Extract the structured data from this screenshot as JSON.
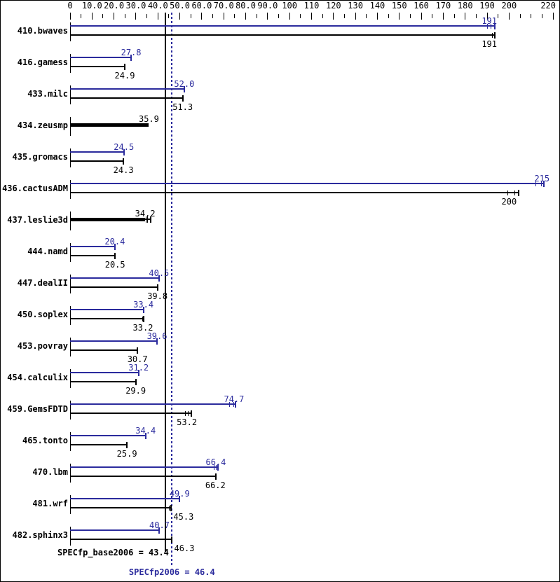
{
  "chart_data": {
    "type": "bar",
    "orientation": "horizontal",
    "title": "",
    "colors": {
      "peak_blue": "#2b2b9d",
      "base_black": "#000000",
      "background": "#ffffff"
    },
    "axis": {
      "min": 0,
      "max": 220,
      "minor_step": 5,
      "labels": [
        {
          "v": 0,
          "label": "0"
        },
        {
          "v": 10,
          "label": "10.0"
        },
        {
          "v": 20,
          "label": "20.0"
        },
        {
          "v": 30,
          "label": "30.0"
        },
        {
          "v": 40,
          "label": "40.0"
        },
        {
          "v": 50,
          "label": "50.0"
        },
        {
          "v": 60,
          "label": "60.0"
        },
        {
          "v": 70,
          "label": "70.0"
        },
        {
          "v": 80,
          "label": "80.0"
        },
        {
          "v": 90,
          "label": "90.0"
        },
        {
          "v": 100,
          "label": "100"
        },
        {
          "v": 110,
          "label": "110"
        },
        {
          "v": 120,
          "label": "120"
        },
        {
          "v": 130,
          "label": "130"
        },
        {
          "v": 140,
          "label": "140"
        },
        {
          "v": 150,
          "label": "150"
        },
        {
          "v": 160,
          "label": "160"
        },
        {
          "v": 170,
          "label": "170"
        },
        {
          "v": 180,
          "label": "180"
        },
        {
          "v": 190,
          "label": "190"
        },
        {
          "v": 200,
          "label": "200"
        },
        {
          "v": 220,
          "label": "220"
        }
      ]
    },
    "benchmarks": [
      {
        "name": "410.bwaves",
        "peak": {
          "value": 191,
          "label": "191",
          "end": 193.5,
          "ticks": [
            190,
            191.5
          ]
        },
        "base": {
          "value": 191,
          "label": "191",
          "end": 193.5,
          "ticks": [
            192.2
          ]
        }
      },
      {
        "name": "416.gamess",
        "peak": {
          "value": 27.8,
          "label": "27.8"
        },
        "base": {
          "value": 24.9,
          "label": "24.9"
        }
      },
      {
        "name": "433.milc",
        "peak": {
          "value": 52.0,
          "label": "52.0"
        },
        "base": {
          "value": 51.3,
          "label": "51.3"
        }
      },
      {
        "name": "434.zeusmp",
        "single": {
          "value": 35.9,
          "label": "35.9"
        }
      },
      {
        "name": "435.gromacs",
        "peak": {
          "value": 24.5,
          "label": "24.5"
        },
        "base": {
          "value": 24.3,
          "label": "24.3"
        }
      },
      {
        "name": "436.cactusADM",
        "peak": {
          "value": 215,
          "label": "215",
          "end": 215.7,
          "ticks": [
            212,
            214.6
          ]
        },
        "base": {
          "value": 200,
          "label": "200",
          "end": 204.3,
          "ticks": [
            199.2,
            202.5
          ]
        }
      },
      {
        "name": "437.leslie3d",
        "single": {
          "value": 34.2,
          "label": "34.2",
          "end": 36.8,
          "ticks": [
            34.5,
            35.2
          ]
        }
      },
      {
        "name": "444.namd",
        "peak": {
          "value": 20.4,
          "label": "20.4"
        },
        "base": {
          "value": 20.5,
          "label": "20.5"
        }
      },
      {
        "name": "447.dealII",
        "peak": {
          "value": 40.5,
          "label": "40.5"
        },
        "base": {
          "value": 39.8,
          "label": "39.8",
          "end": 40.0,
          "ticks": [
            39.5
          ]
        }
      },
      {
        "name": "450.soplex",
        "peak": {
          "value": 33.4,
          "label": "33.4"
        },
        "base": {
          "value": 33.2,
          "label": "33.2",
          "end": 33.4,
          "ticks": [
            32.8
          ]
        }
      },
      {
        "name": "453.povray",
        "peak": {
          "value": 39.6,
          "label": "39.6"
        },
        "base": {
          "value": 30.7,
          "label": "30.7"
        }
      },
      {
        "name": "454.calculix",
        "peak": {
          "value": 31.2,
          "label": "31.2"
        },
        "base": {
          "value": 29.9,
          "label": "29.9"
        }
      },
      {
        "name": "459.GemsFDTD",
        "peak": {
          "value": 74.7,
          "label": "74.7",
          "end": 75.4,
          "ticks": [
            72.6,
            74.5
          ]
        },
        "base": {
          "value": 53.2,
          "label": "53.2",
          "end": 55.2,
          "ticks": [
            52.3,
            53.6
          ]
        }
      },
      {
        "name": "465.tonto",
        "peak": {
          "value": 34.4,
          "label": "34.4"
        },
        "base": {
          "value": 25.9,
          "label": "25.9"
        }
      },
      {
        "name": "470.lbm",
        "peak": {
          "value": 66.4,
          "label": "66.4",
          "end": 67.4,
          "ticks": [
            65.3,
            66.5
          ]
        },
        "base": {
          "value": 66.2,
          "label": "66.2",
          "end": 66.4,
          "ticks": [
            66.0
          ]
        }
      },
      {
        "name": "481.wrf",
        "peak": {
          "value": 49.9,
          "label": "49.9"
        },
        "base": {
          "value": 45.3,
          "label": "45.3",
          "end": 45.9,
          "ticks": [
            45.0
          ],
          "label_shift": 20
        }
      },
      {
        "name": "482.sphinx3",
        "peak": {
          "value": 40.7,
          "label": "40.7"
        },
        "base": {
          "value": 46.3,
          "label": "46.3",
          "label_shift": 18
        }
      }
    ],
    "summary": {
      "base_label": "SPECfp_base2006 = 43.4",
      "base_value": 43.4,
      "peak_label": "SPECfp2006 = 46.4",
      "peak_value": 46.4
    }
  }
}
